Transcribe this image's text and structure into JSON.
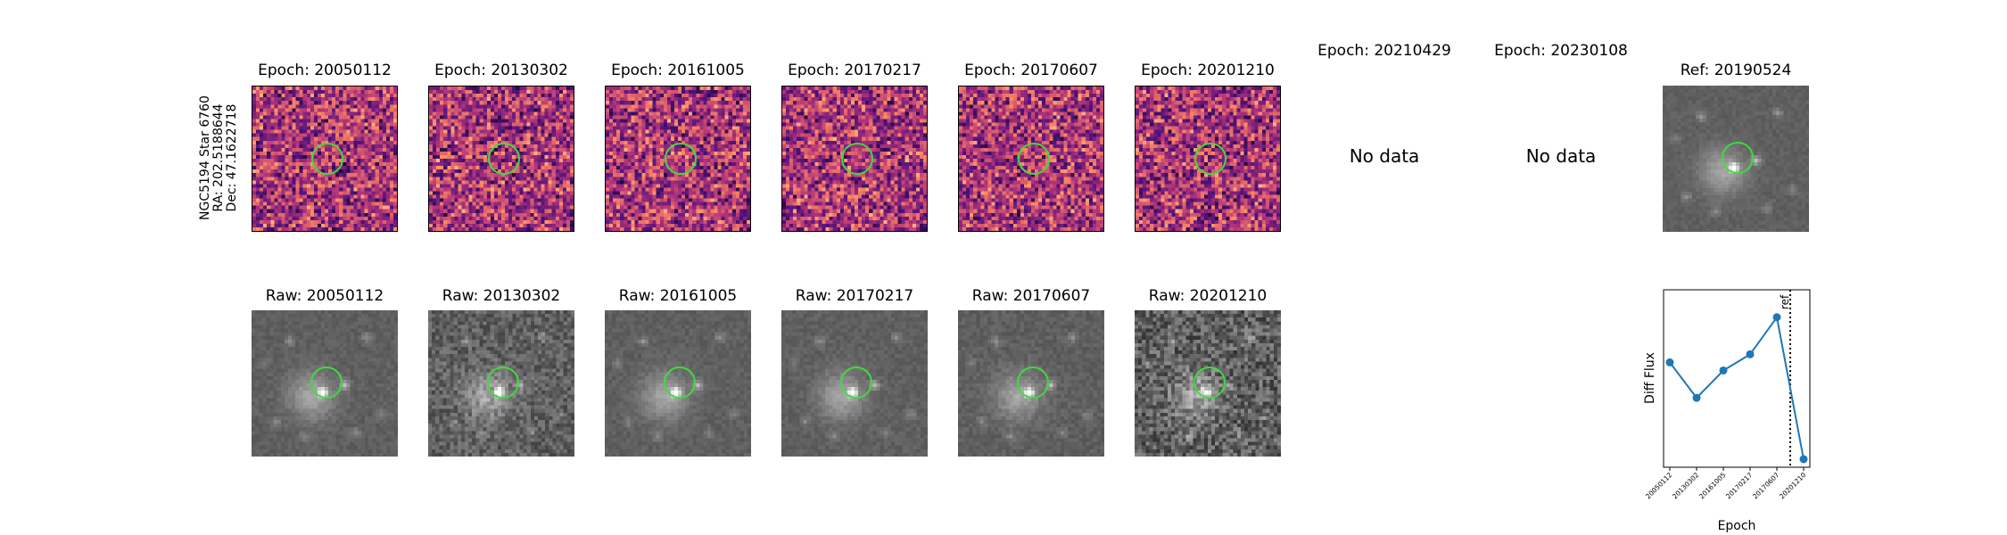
{
  "object_label": {
    "name": "NGC5194 Star 6760",
    "ra": "RA: 202.5188644",
    "dec": "Dec: 47.1622718"
  },
  "diff_row": [
    {
      "title": "Epoch: 20050112",
      "has_data": true
    },
    {
      "title": "Epoch: 20130302",
      "has_data": true
    },
    {
      "title": "Epoch: 20161005",
      "has_data": true
    },
    {
      "title": "Epoch: 20170217",
      "has_data": true
    },
    {
      "title": "Epoch: 20170607",
      "has_data": true
    },
    {
      "title": "Epoch: 20201210",
      "has_data": true
    },
    {
      "title": "Epoch: 20210429",
      "has_data": false,
      "note": "No data"
    },
    {
      "title": "Epoch: 20230108",
      "has_data": false,
      "note": "No data"
    }
  ],
  "ref_panel": {
    "title": "Ref: 20190524"
  },
  "raw_row": [
    {
      "title": "Raw: 20050112"
    },
    {
      "title": "Raw: 20130302"
    },
    {
      "title": "Raw: 20161005"
    },
    {
      "title": "Raw: 20170217"
    },
    {
      "title": "Raw: 20170607"
    },
    {
      "title": "Raw: 20201210"
    }
  ],
  "colors": {
    "circle": "#3ddc3d",
    "line": "#1f77b4"
  },
  "chart_data": {
    "type": "line",
    "x": [
      "20050112",
      "20130302",
      "20161005",
      "20170217",
      "20170607",
      "20201210"
    ],
    "series": [
      {
        "values": [
          0.55,
          0.33,
          0.5,
          0.6,
          0.83,
          -0.05
        ]
      }
    ],
    "ylabel": "Diff Flux",
    "xlabel": "Epoch",
    "ylim": [
      -0.1,
      1.0
    ],
    "ref_marker": {
      "label": "ref",
      "position_between": [
        "20170607",
        "20201210"
      ]
    },
    "grid": false
  }
}
